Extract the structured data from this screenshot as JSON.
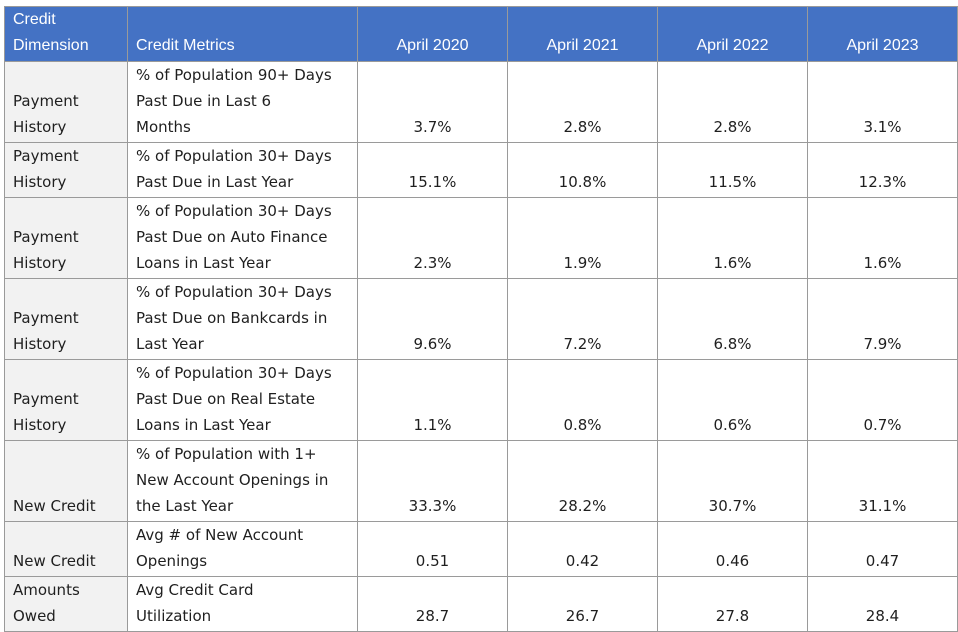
{
  "headers": {
    "dimension": "Credit\nDimension",
    "metrics": "Credit Metrics",
    "years": [
      "April 2020",
      "April 2021",
      "April 2022",
      "April 2023"
    ]
  },
  "rows": [
    {
      "dimension": "Payment\nHistory",
      "metric": "% of Population 90+ Days\nPast Due in Last 6\nMonths",
      "values": [
        "3.7%",
        "2.8%",
        "2.8%",
        "3.1%"
      ]
    },
    {
      "dimension": "Payment\nHistory",
      "metric": "% of Population 30+ Days\nPast Due in Last Year",
      "values": [
        "15.1%",
        "10.8%",
        "11.5%",
        "12.3%"
      ]
    },
    {
      "dimension": "Payment\nHistory",
      "metric": "% of Population 30+ Days\nPast Due on Auto Finance\nLoans in Last Year",
      "values": [
        "2.3%",
        "1.9%",
        "1.6%",
        "1.6%"
      ]
    },
    {
      "dimension": "Payment\nHistory",
      "metric": "% of Population 30+ Days\nPast Due on Bankcards in\nLast Year",
      "values": [
        "9.6%",
        "7.2%",
        "6.8%",
        "7.9%"
      ]
    },
    {
      "dimension": "Payment\nHistory",
      "metric": "% of Population 30+ Days\nPast Due on Real Estate\nLoans in Last Year",
      "values": [
        "1.1%",
        "0.8%",
        "0.6%",
        "0.7%"
      ]
    },
    {
      "dimension": "New Credit",
      "metric": "% of Population with 1+\nNew Account Openings in\nthe Last Year",
      "values": [
        "33.3%",
        "28.2%",
        "30.7%",
        "31.1%"
      ]
    },
    {
      "dimension": "New Credit",
      "metric": "Avg # of New Account\nOpenings",
      "values": [
        "0.51",
        "0.42",
        "0.46",
        "0.47"
      ]
    },
    {
      "dimension": "Amounts\nOwed",
      "metric": "Avg Credit Card\nUtilization",
      "values": [
        "28.7",
        "26.7",
        "27.8",
        "28.4"
      ]
    }
  ]
}
